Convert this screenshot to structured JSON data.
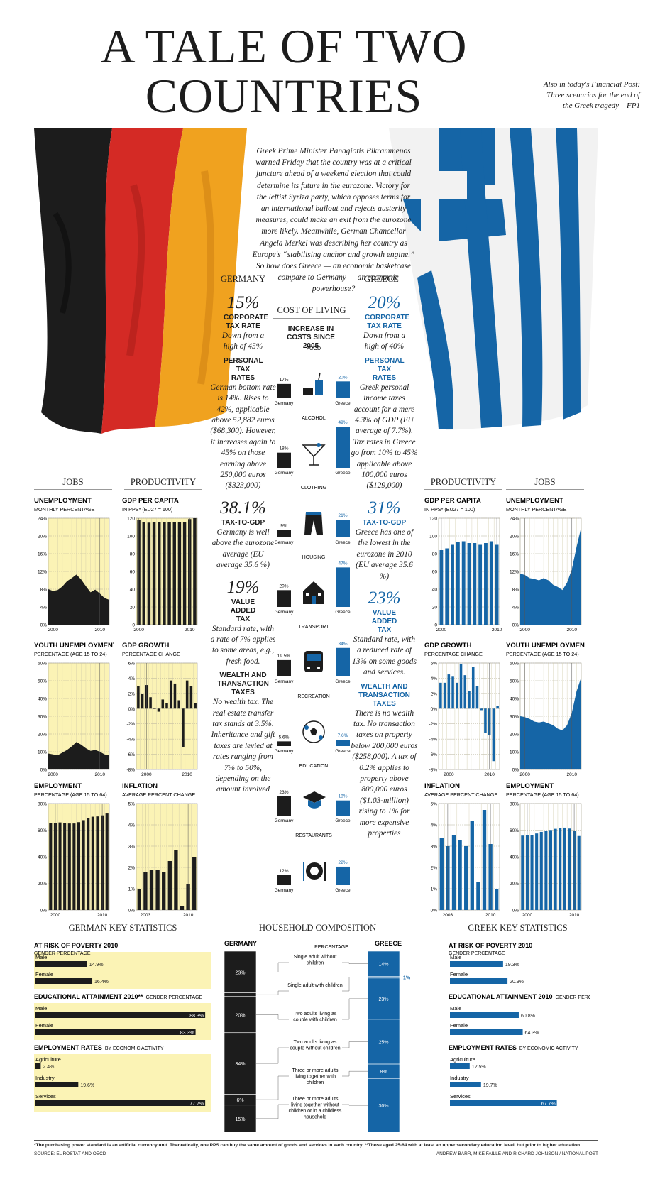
{
  "title": "A TALE OF TWO COUNTRIES",
  "promo": "Also in today's Financial Post: Three scenarios for the end of the Greek tragedy – FP1",
  "intro": "Greek Prime Minister Panagiotis Pikrammenos warned Friday that the country was at a critical juncture ahead of a weekend election that could determine its future in the eurozone. Victory for the leftist Syriza party, which opposes terms for an international bailout and rejects austerity measures, could make an exit from the eurozone more likely. Meanwhile, German Chancellor Angela Merkel was describing her country as Europe's “stabilising anchor and growth engine.” So how does Greece — an economic basketcase — compare to Germany — an economic powerhouse?",
  "colors": {
    "germany_dark": "#1c1c1c",
    "greece_blue": "#1565a6",
    "panel_bg": "#fbf3b5",
    "flag_red": "#d42a25",
    "flag_gold": "#f0a21f"
  },
  "germany": {
    "heading": "GERMANY",
    "corp_value": "15%",
    "corp_label": "CORPORATE TAX RATE",
    "corp_text": "Down from a high of 45%",
    "personal_label": "PERSONAL TAX RATES",
    "personal_text": "German bottom rate is 14%. Rises to 42%, applicable above 52,882 euros ($68,300). However, it increases again to 45% on those earning above 250,000 euros ($323,000)",
    "ttg_value": "38.1%",
    "ttg_label": "TAX-TO-GDP",
    "ttg_text": "Germany is well above the eurozone average (EU average 35.6 %)",
    "vat_value": "19%",
    "vat_label": "VALUE ADDED TAX",
    "vat_text": "Standard rate, with a rate of 7% applies to some areas, e.g., fresh food.",
    "wealth_label": "WEALTH AND TRANSACTION TAXES",
    "wealth_text": "No wealth tax. The real estate transfer tax stands at 3.5%. Inheritance and gift taxes are levied at rates ranging from 7% to 50%, depending on the amount involved"
  },
  "greece": {
    "heading": "GREECE",
    "corp_value": "20%",
    "corp_label": "CORPORATE TAX RATE",
    "corp_text": "Down from a high of 40%",
    "personal_label": "PERSONAL TAX RATES",
    "personal_text": "Greek personal income taxes account for a mere 4.3% of GDP (EU average of 7.7%). Tax rates in Greece go from 10% to 45% applicable above 100,000 euros ($129,000)",
    "ttg_value": "31%",
    "ttg_label": "TAX-TO-GDP",
    "ttg_text": "Greece has one of the lowest in the eurozone in 2010 (EU average 35.6 %)",
    "vat_value": "23%",
    "vat_label": "VALUE ADDED TAX",
    "vat_text": "Standard rate, with a reduced rate of 13% on some goods and services.",
    "wealth_label": "WEALTH AND TRANSACTION TAXES",
    "wealth_text": "There is no wealth tax. No transaction taxes on property below 200,000 euros ($258,000). A tax of 0.2% applies to property above 800,000 euros ($1.03-million) rising to 1% for more expensive properties"
  },
  "section_heads": {
    "jobs": "JOBS",
    "productivity": "PRODUCTIVITY",
    "german_key": "GERMAN KEY STATISTICS",
    "household": "HOUSEHOLD COMPOSITION",
    "greek_key": "GREEK KEY STATISTICS"
  },
  "cost_of_living": {
    "heading": "COST OF LIVING",
    "subheading": "INCREASE IN COSTS SINCE 2005",
    "germany_label": "Germany",
    "greece_label": "Greece",
    "items": [
      {
        "name": "FOOD",
        "icon": "food-icon",
        "germany": "17%",
        "greece": "20%",
        "gv": 17,
        "rv": 20
      },
      {
        "name": "ALCOHOL",
        "icon": "cocktail-icon",
        "germany": "18%",
        "greece": "49%",
        "gv": 18,
        "rv": 49
      },
      {
        "name": "CLOTHING",
        "icon": "pants-icon",
        "germany": "9%",
        "greece": "21%",
        "gv": 9,
        "rv": 21
      },
      {
        "name": "HOUSING",
        "icon": "house-icon",
        "germany": "20%",
        "greece": "47%",
        "gv": 20,
        "rv": 47
      },
      {
        "name": "TRANSPORT",
        "icon": "bus-icon",
        "germany": "19.5%",
        "greece": "34%",
        "gv": 19.5,
        "rv": 34
      },
      {
        "name": "RECREATION",
        "icon": "soccer-ball-icon",
        "germany": "5.6%",
        "greece": "7.6%",
        "gv": 5.6,
        "rv": 7.6
      },
      {
        "name": "EDUCATION",
        "icon": "graduation-cap-icon",
        "germany": "23%",
        "greece": "18%",
        "gv": 23,
        "rv": 18
      },
      {
        "name": "RESTAURANTS",
        "icon": "plate-cutlery-icon",
        "germany": "12%",
        "greece": "22%",
        "gv": 12,
        "rv": 22
      }
    ]
  },
  "chart_data": [
    {
      "id": "de_unemployment",
      "type": "area",
      "country": "Germany",
      "title": "UNEMPLOYMENT",
      "subtitle": "MONTHLY PERCENTAGE",
      "xlim": [
        1999,
        2012
      ],
      "ylim": [
        0,
        24
      ],
      "yticks": [
        0,
        4,
        8,
        12,
        16,
        20,
        24
      ],
      "ytick_labels": [
        "0%",
        "4%",
        "8%",
        "12%",
        "16%",
        "20%",
        "24%"
      ],
      "xtick_labels": [
        "2000",
        "2010"
      ],
      "x": [
        1999,
        2000,
        2001,
        2002,
        2003,
        2004,
        2005,
        2006,
        2007,
        2008,
        2009,
        2010,
        2011,
        2012
      ],
      "values": [
        8.0,
        7.6,
        7.8,
        8.6,
        9.8,
        10.5,
        11.3,
        10.2,
        8.7,
        7.3,
        7.9,
        7.0,
        6.0,
        5.6
      ]
    },
    {
      "id": "de_gdp_per_capita",
      "type": "bar",
      "country": "Germany",
      "title": "GDP PER CAPITA",
      "subtitle": "IN PPS* (EU27 = 100)",
      "ylim": [
        0,
        120
      ],
      "yticks": [
        0,
        20,
        40,
        60,
        80,
        100,
        120
      ],
      "ytick_labels": [
        "0",
        "20",
        "40",
        "60",
        "80",
        "100",
        "120"
      ],
      "xtick_labels": [
        "2000",
        "2010"
      ],
      "categories": [
        "2000",
        "2001",
        "2002",
        "2003",
        "2004",
        "2005",
        "2006",
        "2007",
        "2008",
        "2009",
        "2010",
        "2011"
      ],
      "values": [
        118,
        116,
        115,
        116,
        116,
        116,
        116,
        116,
        116,
        116,
        119,
        120
      ]
    },
    {
      "id": "de_youth_unemployment",
      "type": "area",
      "country": "Germany",
      "title": "YOUTH UNEMPLOYMENT",
      "subtitle": "PERCENTAGE (AGE 15 TO 24)",
      "xlim": [
        1999,
        2012
      ],
      "ylim": [
        0,
        60
      ],
      "yticks": [
        0,
        10,
        20,
        30,
        40,
        50,
        60
      ],
      "ytick_labels": [
        "0%",
        "10%",
        "20%",
        "30%",
        "40%",
        "50%",
        "60%"
      ],
      "xtick_labels": [
        "2000",
        "2010"
      ],
      "x": [
        1999,
        2000,
        2001,
        2002,
        2003,
        2004,
        2005,
        2006,
        2007,
        2008,
        2009,
        2010,
        2011,
        2012
      ],
      "values": [
        9.0,
        8.5,
        8.0,
        9.5,
        11.0,
        13.0,
        15.5,
        14.0,
        12.0,
        10.5,
        11.0,
        10.0,
        8.5,
        8.0
      ]
    },
    {
      "id": "de_gdp_growth",
      "type": "bar",
      "country": "Germany",
      "title": "GDP GROWTH",
      "subtitle": "PERCENTAGE CHANGE",
      "ylim": [
        -8,
        6
      ],
      "yticks": [
        -8,
        -6,
        -4,
        -2,
        0,
        2,
        4,
        6
      ],
      "ytick_labels": [
        "-8%",
        "-6%",
        "-4%",
        "-2%",
        "0%",
        "2%",
        "4%",
        "6%"
      ],
      "xtick_labels": [
        "2000",
        "2010"
      ],
      "categories": [
        "1998",
        "1999",
        "2000",
        "2001",
        "2002",
        "2003",
        "2004",
        "2005",
        "2006",
        "2007",
        "2008",
        "2009",
        "2010",
        "2011",
        "2012"
      ],
      "values": [
        3.0,
        1.9,
        3.1,
        1.5,
        0.0,
        -0.4,
        1.2,
        0.7,
        3.7,
        3.3,
        1.1,
        -5.1,
        3.7,
        3.0,
        0.7
      ]
    },
    {
      "id": "de_employment",
      "type": "bar",
      "country": "Germany",
      "title": "EMPLOYMENT",
      "subtitle": "PERCENTAGE (AGE 15 TO 64)",
      "ylim": [
        0,
        80
      ],
      "yticks": [
        0,
        20,
        40,
        60,
        80
      ],
      "ytick_labels": [
        "0%",
        "20%",
        "40%",
        "60%",
        "80%"
      ],
      "xtick_labels": [
        "2000",
        "2010"
      ],
      "categories": [
        "1999",
        "2000",
        "2001",
        "2002",
        "2003",
        "2004",
        "2005",
        "2006",
        "2007",
        "2008",
        "2009",
        "2010",
        "2011"
      ],
      "values": [
        65.2,
        65.6,
        65.8,
        65.4,
        65.0,
        65.0,
        66.0,
        67.5,
        69.0,
        70.1,
        70.3,
        71.1,
        72.5
      ]
    },
    {
      "id": "de_inflation",
      "type": "bar",
      "country": "Germany",
      "title": "INFLATION",
      "subtitle": "AVERAGE PERCENT CHANGE",
      "ylim": [
        0,
        5
      ],
      "yticks": [
        0,
        1,
        2,
        3,
        4,
        5
      ],
      "ytick_labels": [
        "0%",
        "1%",
        "2%",
        "3%",
        "4%",
        "5%"
      ],
      "xtick_labels": [
        "2003",
        "2010"
      ],
      "categories": [
        "2002",
        "2003",
        "2004",
        "2005",
        "2006",
        "2007",
        "2008",
        "2009",
        "2010",
        "2011"
      ],
      "values": [
        1.0,
        1.8,
        1.9,
        1.9,
        1.8,
        2.3,
        2.8,
        0.2,
        1.2,
        2.5
      ]
    },
    {
      "id": "gr_gdp_per_capita",
      "type": "bar",
      "country": "Greece",
      "title": "GDP PER CAPITA",
      "subtitle": "IN PPS* (EU27 = 100)",
      "ylim": [
        0,
        120
      ],
      "yticks": [
        0,
        20,
        40,
        60,
        80,
        100,
        120
      ],
      "ytick_labels": [
        "0",
        "20",
        "40",
        "60",
        "80",
        "100",
        "120"
      ],
      "xtick_labels": [
        "2000",
        "2010"
      ],
      "categories": [
        "2000",
        "2001",
        "2002",
        "2003",
        "2004",
        "2005",
        "2006",
        "2007",
        "2008",
        "2009",
        "2010"
      ],
      "values": [
        84,
        86,
        90,
        93,
        94,
        92,
        92,
        90,
        92,
        94,
        90
      ]
    },
    {
      "id": "gr_unemployment",
      "type": "area",
      "country": "Greece",
      "title": "UNEMPLOYMENT",
      "subtitle": "MONTHLY PERCENTAGE",
      "xlim": [
        1999,
        2012
      ],
      "ylim": [
        0,
        24
      ],
      "yticks": [
        0,
        4,
        8,
        12,
        16,
        20,
        24
      ],
      "ytick_labels": [
        "0%",
        "4%",
        "8%",
        "12%",
        "16%",
        "20%",
        "24%"
      ],
      "xtick_labels": [
        "2000",
        "2010"
      ],
      "x": [
        1999,
        2000,
        2001,
        2002,
        2003,
        2004,
        2005,
        2006,
        2007,
        2008,
        2009,
        2010,
        2011,
        2012
      ],
      "values": [
        11.5,
        11.2,
        10.5,
        10.3,
        10.0,
        10.5,
        10.0,
        9.0,
        8.5,
        7.8,
        9.5,
        12.5,
        17.5,
        22.0
      ]
    },
    {
      "id": "gr_gdp_growth",
      "type": "bar",
      "country": "Greece",
      "title": "GDP GROWTH",
      "subtitle": "PERCENTAGE CHANGE",
      "ylim": [
        -8,
        6
      ],
      "yticks": [
        -8,
        -6,
        -4,
        -2,
        0,
        2,
        4,
        6
      ],
      "ytick_labels": [
        "-8%",
        "-6%",
        "-4%",
        "-2%",
        "0%",
        "2%",
        "4%",
        "6%"
      ],
      "xtick_labels": [
        "2000",
        "2010"
      ],
      "categories": [
        "1998",
        "1999",
        "2000",
        "2001",
        "2002",
        "2003",
        "2004",
        "2005",
        "2006",
        "2007",
        "2008",
        "2009",
        "2010",
        "2011",
        "2012"
      ],
      "values": [
        3.4,
        3.4,
        4.5,
        4.2,
        3.4,
        5.9,
        4.4,
        2.3,
        5.5,
        3.0,
        -0.2,
        -3.2,
        -3.5,
        -6.9,
        0.4
      ]
    },
    {
      "id": "gr_youth_unemployment",
      "type": "area",
      "country": "Greece",
      "title": "YOUTH UNEMPLOYMENT",
      "subtitle": "PERCENTAGE (AGE 15 TO 24)",
      "xlim": [
        1999,
        2012
      ],
      "ylim": [
        0,
        60
      ],
      "yticks": [
        0,
        10,
        20,
        30,
        40,
        50,
        60
      ],
      "ytick_labels": [
        "0%",
        "10%",
        "20%",
        "30%",
        "40%",
        "50%",
        "60%"
      ],
      "xtick_labels": [
        "2000",
        "2010"
      ],
      "x": [
        1999,
        2000,
        2001,
        2002,
        2003,
        2004,
        2005,
        2006,
        2007,
        2008,
        2009,
        2010,
        2011,
        2012
      ],
      "values": [
        30.0,
        29.5,
        28.5,
        27.0,
        26.5,
        27.0,
        26.0,
        25.0,
        23.0,
        22.0,
        25.0,
        32.0,
        44.0,
        52.0
      ]
    },
    {
      "id": "gr_inflation",
      "type": "bar",
      "country": "Greece",
      "title": "INFLATION",
      "subtitle": "AVERAGE PERCENT CHANGE",
      "ylim": [
        0,
        5
      ],
      "yticks": [
        0,
        1,
        2,
        3,
        4,
        5
      ],
      "ytick_labels": [
        "0%",
        "1%",
        "2%",
        "3%",
        "4%",
        "5%"
      ],
      "xtick_labels": [
        "2003",
        "2010"
      ],
      "categories": [
        "2002",
        "2003",
        "2004",
        "2005",
        "2006",
        "2007",
        "2008",
        "2009",
        "2010",
        "2011"
      ],
      "values": [
        3.4,
        3.0,
        3.5,
        3.3,
        3.0,
        4.2,
        1.3,
        4.7,
        3.1,
        1.0
      ]
    },
    {
      "id": "gr_employment",
      "type": "bar",
      "country": "Greece",
      "title": "EMPLOYMENT",
      "subtitle": "PERCENTAGE (AGE 15 TO 64)",
      "ylim": [
        0,
        80
      ],
      "yticks": [
        0,
        20,
        40,
        60,
        80
      ],
      "ytick_labels": [
        "0%",
        "20%",
        "40%",
        "60%",
        "80%"
      ],
      "xtick_labels": [
        "2000",
        "2010"
      ],
      "categories": [
        "1999",
        "2000",
        "2001",
        "2002",
        "2003",
        "2004",
        "2005",
        "2006",
        "2007",
        "2008",
        "2009",
        "2010",
        "2011"
      ],
      "values": [
        55.9,
        56.5,
        56.3,
        57.5,
        58.7,
        59.4,
        60.1,
        61.0,
        61.4,
        61.9,
        61.2,
        59.6,
        55.6
      ]
    }
  ],
  "key_stats": {
    "germany": {
      "poverty_title": "AT RISK OF POVERTY 2010",
      "poverty_sub": "GENDER PERCENTAGE",
      "poverty": [
        {
          "label": "Male",
          "value": 14.9,
          "text": "14.9%"
        },
        {
          "label": "Female",
          "value": 16.4,
          "text": "16.4%"
        }
      ],
      "edu_title": "EDUCATIONAL ATTAINMENT 2010**",
      "edu_sub": "GENDER PERCENTAGE",
      "edu": [
        {
          "label": "Male",
          "value": 88.3,
          "text": "88.3%"
        },
        {
          "label": "Female",
          "value": 83.3,
          "text": "83.3%"
        }
      ],
      "emp_title": "EMPLOYMENT RATES",
      "emp_sub": "BY ECONOMIC ACTIVITY",
      "emp": [
        {
          "label": "Agriculture",
          "value": 2.4,
          "text": "2.4%"
        },
        {
          "label": "Industry",
          "value": 19.6,
          "text": "19.6%"
        },
        {
          "label": "Services",
          "value": 77.7,
          "text": "77.7%"
        }
      ]
    },
    "greece": {
      "poverty_title": "AT RISK OF POVERTY 2010",
      "poverty_sub": "GENDER PERCENTAGE",
      "poverty": [
        {
          "label": "Male",
          "value": 19.3,
          "text": "19.3%"
        },
        {
          "label": "Female",
          "value": 20.9,
          "text": "20.9%"
        }
      ],
      "edu_title": "EDUCATIONAL ATTAINMENT 2010",
      "edu_sub": "GENDER PERCENTAGE",
      "edu": [
        {
          "label": "Male",
          "value": 60.8,
          "text": "60.8%"
        },
        {
          "label": "Female",
          "value": 64.3,
          "text": "64.3%"
        }
      ],
      "emp_title": "EMPLOYMENT RATES",
      "emp_sub": "BY ECONOMIC ACTIVITY",
      "emp": [
        {
          "label": "Agriculture",
          "value": 12.5,
          "text": "12.5%"
        },
        {
          "label": "Industry",
          "value": 19.7,
          "text": "19.7%"
        },
        {
          "label": "Services",
          "value": 67.7,
          "text": "67.7%"
        }
      ]
    }
  },
  "household": {
    "germany_label": "GERMANY",
    "greece_label": "GREECE",
    "percentage_label": "PERCENTAGE",
    "categories": [
      "Single adult without children",
      "Single adult with children",
      "Two adults living as couple with children",
      "Two adults living as couple without children",
      "Three or more adults living together with children",
      "Three or more adults living together without children or in a childless household"
    ],
    "germany": [
      23,
      2,
      20,
      34,
      6,
      15
    ],
    "germany_text": [
      "23%",
      "2%",
      "20%",
      "34%",
      "6%",
      "15%"
    ],
    "greece": [
      14,
      1,
      23,
      25,
      8,
      30
    ],
    "greece_text": [
      "14%",
      "1%",
      "23%",
      "25%",
      "8%",
      "30%"
    ]
  },
  "footnote": "*The purchasing power standard is an artificial currency unit. Theoretically, one PPS can buy the same amount of goods and services in each country. **Those aged 25-64 with at least an upper secondary education level, but prior to higher education",
  "source": "SOURCE: EUROSTAT AND OECD",
  "credits": "ANDREW BARR, MIKE FAILLE AND RICHARD JOHNSON / NATIONAL POST"
}
